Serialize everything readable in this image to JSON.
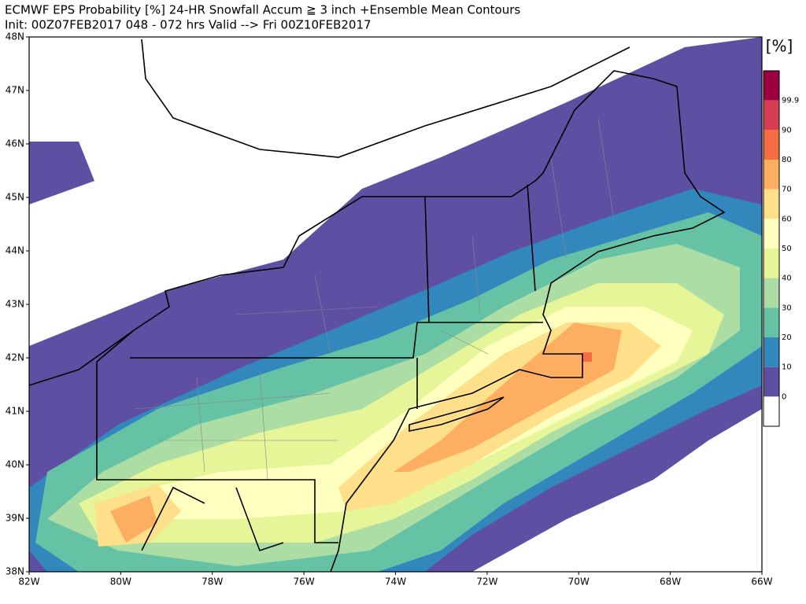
{
  "header": {
    "title": "ECMWF EPS Probability [%] 24-HR Snowfall Accum ≧ 3 inch   +Ensemble Mean Contours",
    "subtitle": "Init: 00Z07FEB2017   048 - 072 hrs Valid --> Fri 00Z10FEB2017"
  },
  "map": {
    "lat_labels": [
      "48N",
      "47N",
      "46N",
      "45N",
      "44N",
      "43N",
      "42N",
      "41N",
      "40N",
      "39N",
      "38N"
    ],
    "lon_labels": [
      "82W",
      "80W",
      "78W",
      "76W",
      "74W",
      "72W",
      "70W",
      "68W",
      "66W"
    ]
  },
  "colorbar": {
    "unit": "[%]",
    "labels": [
      "99.9",
      "90",
      "80",
      "70",
      "60",
      "50",
      "40",
      "30",
      "20",
      "10",
      "0"
    ],
    "colors": [
      "#9e0142",
      "#d53e4f",
      "#f46d43",
      "#fdae61",
      "#fee08b",
      "#ffffbf",
      "#e6f598",
      "#abdda4",
      "#66c2a5",
      "#3288bd",
      "#5e4fa2",
      "#ffffff"
    ]
  }
}
